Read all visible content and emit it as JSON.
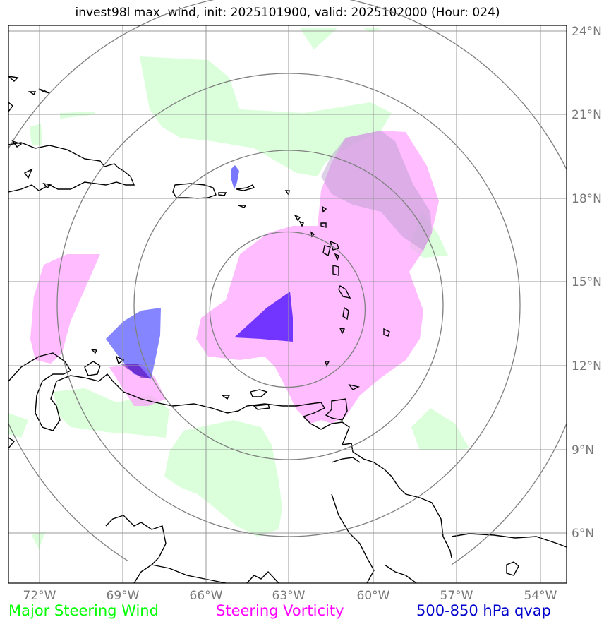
{
  "title": "invest98l max. wind, init: 2025101900, valid: 2025102000 (Hour: 024)",
  "map": {
    "lon_labels": [
      "72°W",
      "69°W",
      "66°W",
      "63°W",
      "60°W",
      "57°W",
      "54°W"
    ],
    "lat_labels": [
      "24°N",
      "21°N",
      "18°N",
      "15°N",
      "12°N",
      "9°N",
      "6°N"
    ],
    "storm_center": {
      "lon": "63°W",
      "lat": "14°N"
    }
  },
  "legend": {
    "wind": "Major Steering Wind",
    "vorticity": "Steering Vorticity",
    "qvap": "500-850 hPa qvap"
  },
  "colors": {
    "wind": "#00ff00",
    "vorticity": "#ff00ff",
    "qvap": "#0000cc",
    "grid": "#888888"
  }
}
